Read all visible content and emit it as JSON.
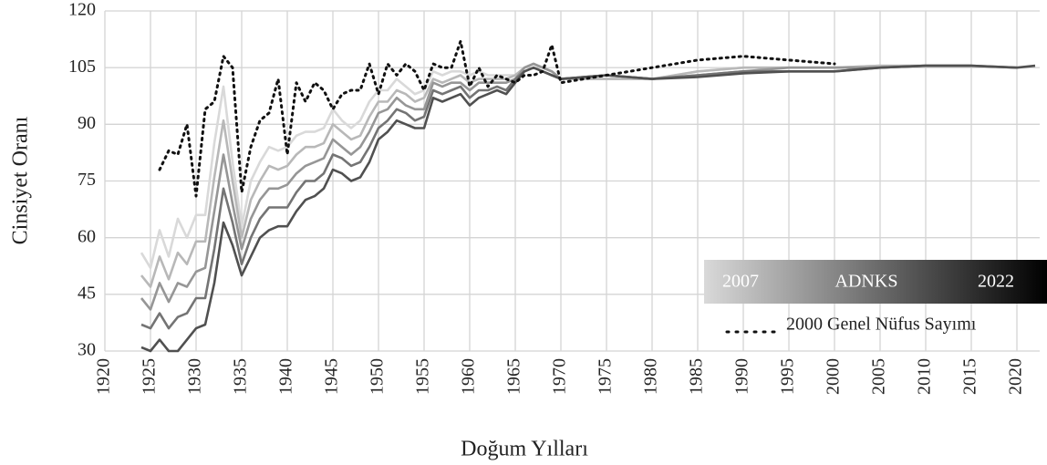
{
  "chart_data": {
    "type": "line",
    "x_label": "Doğum Yılları",
    "y_label": "Cinsiyet Oranı",
    "xlim": [
      1920,
      2022.5
    ],
    "xticks": [
      1920,
      1925,
      1930,
      1935,
      1940,
      1945,
      1950,
      1955,
      1960,
      1965,
      1970,
      1975,
      1980,
      1985,
      1990,
      1995,
      2000,
      2005,
      2010,
      2015,
      2020
    ],
    "ylim": [
      30,
      120
    ],
    "yticks": [
      30,
      45,
      60,
      75,
      90,
      105,
      120
    ],
    "grid": true,
    "legend": {
      "title": "ADNKS",
      "from": "2007",
      "to": "2022",
      "corner": "bottom-right"
    },
    "x": [
      1924,
      1925,
      1926,
      1927,
      1928,
      1929,
      1930,
      1931,
      1932,
      1933,
      1934,
      1935,
      1936,
      1937,
      1938,
      1939,
      1940,
      1941,
      1942,
      1943,
      1944,
      1945,
      1946,
      1947,
      1948,
      1949,
      1950,
      1951,
      1952,
      1953,
      1954,
      1955,
      1956,
      1957,
      1958,
      1959,
      1960,
      1961,
      1962,
      1963,
      1964,
      1965,
      1966,
      1967,
      1968,
      1969,
      1970,
      1975,
      1980,
      1985,
      1990,
      1995,
      2000,
      2005,
      2010,
      2015,
      2020,
      2022
    ],
    "series": [
      {
        "color": "#d9d9d9",
        "values": [
          56,
          52,
          62,
          55,
          65,
          60,
          66,
          66,
          85,
          100,
          80,
          63,
          75,
          80,
          84,
          83,
          84,
          87,
          88,
          88,
          89,
          94,
          91,
          89,
          91,
          96,
          99,
          99,
          102,
          100,
          98,
          99,
          104,
          103,
          104,
          104,
          103,
          104,
          103,
          103,
          103,
          103,
          105,
          106,
          105,
          104,
          102,
          102,
          102,
          104,
          105,
          105,
          105,
          105.5,
          null,
          null,
          null,
          null
        ]
      },
      {
        "color": "#b8b8b8",
        "values": [
          50,
          47,
          55,
          49,
          56,
          53,
          59,
          59,
          76,
          91,
          75,
          60,
          70,
          75,
          79,
          78,
          79,
          82,
          84,
          84,
          85,
          90,
          88,
          86,
          87,
          92,
          96,
          96,
          99,
          98,
          96,
          97,
          102,
          101,
          102,
          103,
          101,
          102,
          102,
          102,
          102,
          103,
          105,
          106,
          105,
          104,
          102,
          102,
          102,
          104,
          105,
          105,
          105,
          105.5,
          105.5,
          null,
          null,
          null
        ]
      },
      {
        "color": "#969696",
        "values": [
          44,
          41,
          48,
          43,
          48,
          47,
          51,
          52,
          67,
          82,
          69,
          57,
          65,
          70,
          73,
          73,
          74,
          77,
          79,
          80,
          81,
          86,
          84,
          82,
          84,
          88,
          93,
          94,
          97,
          95,
          94,
          94,
          101,
          100,
          101,
          101,
          99,
          101,
          101,
          101,
          101,
          102,
          105,
          106,
          105,
          104,
          102,
          103,
          102,
          103,
          104,
          105,
          105,
          105,
          105.5,
          105.5,
          null,
          null
        ]
      },
      {
        "color": "#747474",
        "values": [
          37,
          36,
          40,
          36,
          39,
          40,
          44,
          44,
          57,
          73,
          64,
          53,
          60,
          65,
          68,
          68,
          68,
          72,
          75,
          75,
          77,
          82,
          81,
          79,
          80,
          84,
          89,
          91,
          94,
          93,
          91,
          92,
          99,
          98,
          99,
          100,
          97,
          99,
          99,
          100,
          99,
          102,
          104,
          105,
          104,
          103,
          102,
          103,
          102,
          103,
          104,
          104,
          104,
          105,
          105.5,
          105.5,
          105,
          null
        ]
      },
      {
        "color": "#505050",
        "values": [
          31,
          30,
          33,
          30,
          30,
          33,
          36,
          37,
          48,
          64,
          58,
          50,
          55,
          60,
          62,
          63,
          63,
          67,
          70,
          71,
          73,
          78,
          77,
          75,
          76,
          80,
          86,
          88,
          91,
          90,
          89,
          89,
          97,
          96,
          97,
          98,
          95,
          97,
          98,
          99,
          98,
          101,
          104,
          105,
          104,
          103,
          102,
          103,
          102,
          102.5,
          103.5,
          104,
          104,
          105,
          105.5,
          105.5,
          105,
          105.5
        ]
      },
      {
        "name": "2000 Genel Nüfus Sayımı",
        "color": "#111111",
        "dash": true,
        "values": [
          null,
          null,
          78,
          83,
          82,
          90,
          71,
          94,
          96,
          108,
          105,
          72,
          84,
          91,
          93,
          102,
          82,
          101,
          96,
          101,
          99,
          94,
          98,
          99,
          99,
          106,
          98,
          106,
          103,
          106,
          104,
          99,
          106,
          105,
          105,
          112,
          100,
          105,
          100,
          103,
          102,
          101,
          103,
          103,
          104,
          111,
          101,
          103,
          105,
          107,
          108,
          107,
          106,
          null,
          null,
          null,
          null,
          null
        ]
      }
    ]
  }
}
